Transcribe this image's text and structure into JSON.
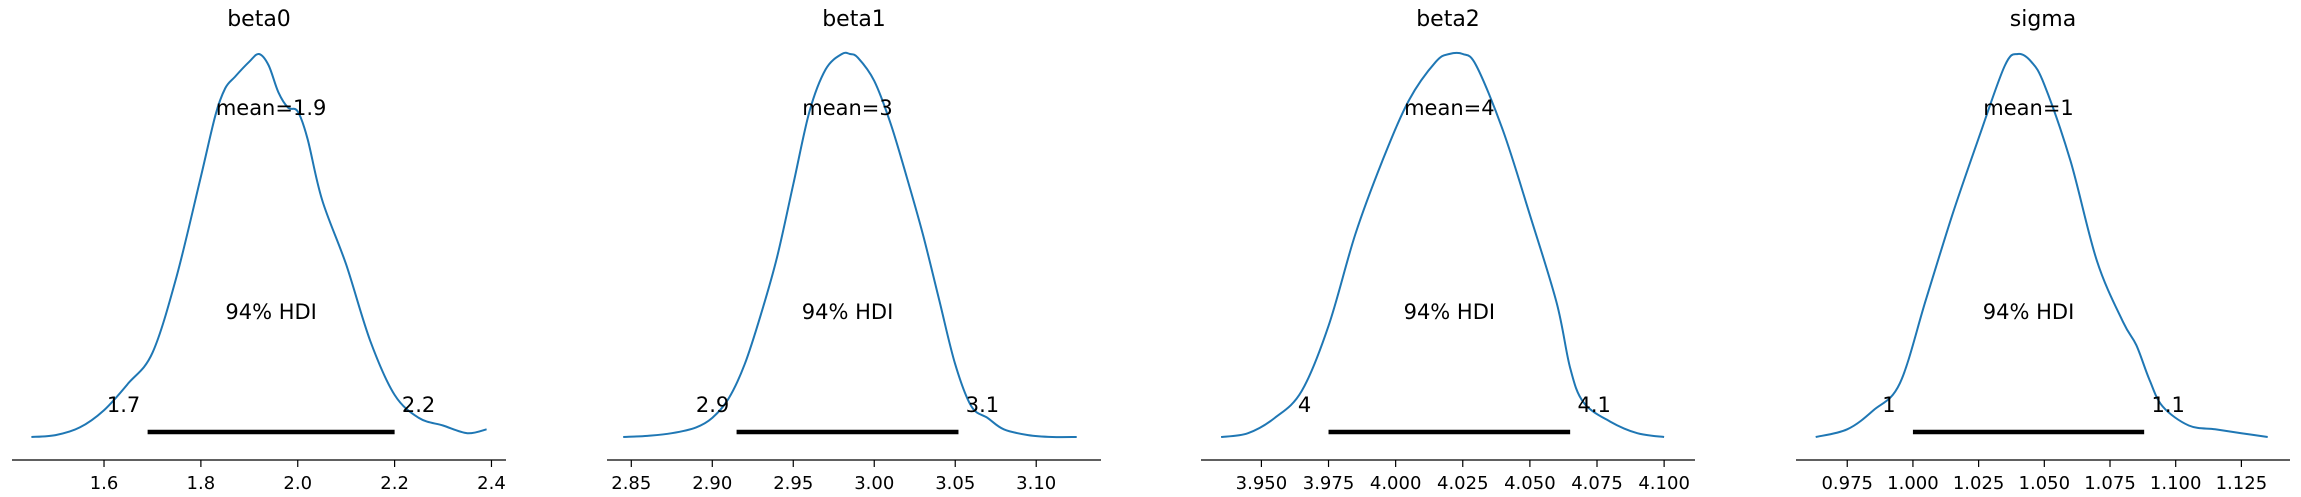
{
  "chart_data": [
    {
      "type": "line",
      "title": "beta0",
      "mean_label": "mean=1.9",
      "hdi_label": "94% HDI",
      "hdi": [
        1.69,
        2.2
      ],
      "hdi_low_label": "1.7",
      "hdi_high_label": "2.2",
      "xlim": [
        1.41,
        2.43
      ],
      "ylim": [
        0,
        1.0
      ],
      "xticks": [
        1.6,
        1.8,
        2.0,
        2.2,
        2.4
      ],
      "xticklabels": [
        "1.6",
        "1.8",
        "2.0",
        "2.2",
        "2.4"
      ],
      "series": [
        {
          "x": [
            1.45,
            1.5,
            1.55,
            1.6,
            1.65,
            1.7,
            1.75,
            1.8,
            1.83,
            1.85,
            1.87,
            1.9,
            1.92,
            1.94,
            1.96,
            1.98,
            2.0,
            2.02,
            2.05,
            2.1,
            2.15,
            2.2,
            2.25,
            2.3,
            2.35,
            2.39
          ],
          "y": [
            0.0,
            0.005,
            0.025,
            0.07,
            0.14,
            0.22,
            0.42,
            0.68,
            0.84,
            0.91,
            0.94,
            0.98,
            1.0,
            0.97,
            0.9,
            0.86,
            0.85,
            0.78,
            0.62,
            0.45,
            0.25,
            0.11,
            0.05,
            0.03,
            0.01,
            0.02
          ]
        }
      ]
    },
    {
      "type": "line",
      "title": "beta1",
      "mean_label": "mean=3",
      "hdi_label": "94% HDI",
      "hdi": [
        2.915,
        3.052
      ],
      "hdi_low_label": "2.9",
      "hdi_high_label": "3.1",
      "xlim": [
        2.835,
        3.14
      ],
      "ylim": [
        0,
        1.0
      ],
      "xticks": [
        2.85,
        2.9,
        2.95,
        3.0,
        3.05,
        3.1
      ],
      "xticklabels": [
        "2.85",
        "2.90",
        "2.95",
        "3.00",
        "3.05",
        "3.10"
      ],
      "series": [
        {
          "x": [
            2.845,
            2.86,
            2.875,
            2.89,
            2.9,
            2.91,
            2.92,
            2.93,
            2.94,
            2.95,
            2.96,
            2.97,
            2.98,
            2.985,
            2.99,
            3.0,
            3.01,
            3.02,
            3.03,
            3.04,
            3.05,
            3.06,
            3.07,
            3.08,
            3.095,
            3.11,
            3.125
          ],
          "y": [
            0.0,
            0.003,
            0.01,
            0.025,
            0.05,
            0.1,
            0.19,
            0.32,
            0.47,
            0.66,
            0.85,
            0.96,
            1.0,
            1.0,
            0.99,
            0.93,
            0.82,
            0.68,
            0.53,
            0.36,
            0.19,
            0.08,
            0.05,
            0.02,
            0.005,
            0.0,
            0.0
          ]
        }
      ]
    },
    {
      "type": "line",
      "title": "beta2",
      "mean_label": "mean=4",
      "hdi_label": "94% HDI",
      "hdi": [
        3.975,
        4.065
      ],
      "hdi_low_label": "4",
      "hdi_high_label": "4.1",
      "xlim": [
        3.9275,
        4.1115
      ],
      "ylim": [
        0,
        1.0
      ],
      "xticks": [
        3.95,
        3.975,
        4.0,
        4.025,
        4.05,
        4.075,
        4.1
      ],
      "xticklabels": [
        "3.950",
        "3.975",
        "4.000",
        "4.025",
        "4.050",
        "4.075",
        "4.100"
      ],
      "series": [
        {
          "x": [
            3.935,
            3.945,
            3.955,
            3.965,
            3.975,
            3.985,
            3.995,
            4.005,
            4.015,
            4.02,
            4.025,
            4.03,
            4.04,
            4.05,
            4.06,
            4.065,
            4.07,
            4.08,
            4.09,
            4.1
          ],
          "y": [
            0.0,
            0.01,
            0.05,
            0.12,
            0.29,
            0.53,
            0.72,
            0.88,
            0.98,
            1.0,
            1.0,
            0.97,
            0.8,
            0.58,
            0.35,
            0.18,
            0.09,
            0.04,
            0.01,
            0.0
          ]
        }
      ]
    },
    {
      "type": "line",
      "title": "sigma",
      "mean_label": "mean=1",
      "hdi_label": "94% HDI",
      "hdi": [
        1.0,
        1.088
      ],
      "hdi_low_label": "1",
      "hdi_high_label": "1.1",
      "xlim": [
        0.9555,
        1.1435
      ],
      "ylim": [
        0,
        1.0
      ],
      "xticks": [
        0.975,
        1.0,
        1.025,
        1.05,
        1.075,
        1.1,
        1.125
      ],
      "xticklabels": [
        "0.975",
        "1.000",
        "1.025",
        "1.050",
        "1.075",
        "1.100",
        "1.125"
      ],
      "series": [
        {
          "x": [
            0.963,
            0.975,
            0.985,
            0.995,
            1.005,
            1.015,
            1.025,
            1.035,
            1.04,
            1.045,
            1.05,
            1.06,
            1.07,
            1.08,
            1.085,
            1.09,
            1.095,
            1.105,
            1.115,
            1.125,
            1.135
          ],
          "y": [
            0.0,
            0.02,
            0.07,
            0.14,
            0.36,
            0.58,
            0.78,
            0.97,
            1.0,
            0.98,
            0.92,
            0.72,
            0.46,
            0.3,
            0.24,
            0.15,
            0.08,
            0.03,
            0.02,
            0.01,
            0.0
          ]
        }
      ]
    }
  ]
}
